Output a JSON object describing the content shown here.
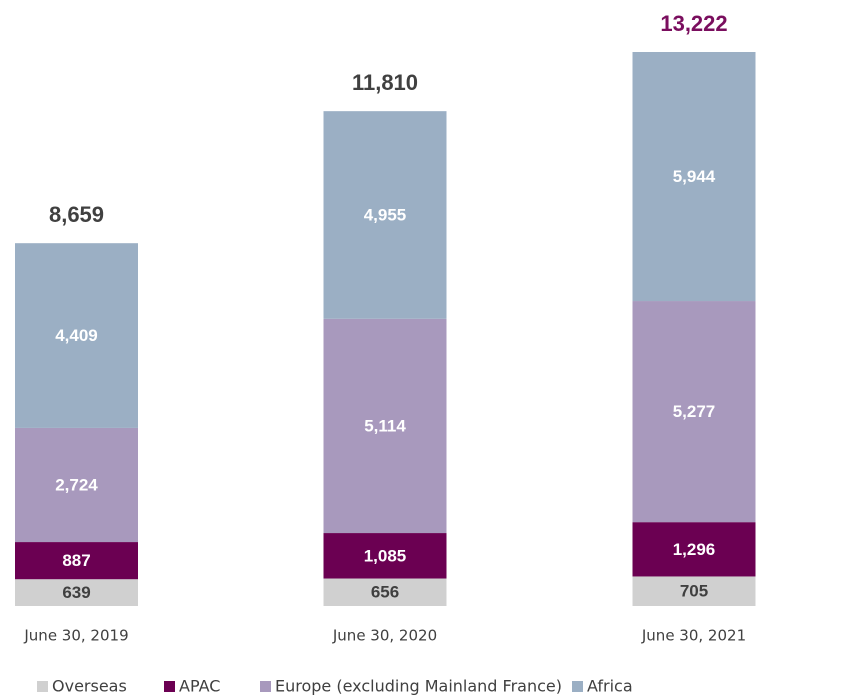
{
  "chart_data": {
    "type": "stacked_bar",
    "categories": [
      "June 30, 2019",
      "June 30, 2020",
      "June 30, 2021"
    ],
    "series": [
      {
        "name": "Overseas",
        "color": "#d0d0d0",
        "label_color": "#404040",
        "values": [
          639,
          656,
          705
        ],
        "value_labels": [
          "639",
          "656",
          "705"
        ]
      },
      {
        "name": "APAC",
        "color": "#6b0052",
        "label_color": "#ffffff",
        "values": [
          887,
          1085,
          1296
        ],
        "value_labels": [
          "887",
          "1,085",
          "1,296"
        ]
      },
      {
        "name": "Europe (excluding Mainland France)",
        "color": "#a899bd",
        "label_color": "#ffffff",
        "values": [
          2724,
          5114,
          5277
        ],
        "value_labels": [
          "2,724",
          "5,114",
          "5,277"
        ]
      },
      {
        "name": "Africa",
        "color": "#9bafc4",
        "label_color": "#ffffff",
        "values": [
          4409,
          4955,
          5944
        ],
        "value_labels": [
          "4,409",
          "4,955",
          "5,944"
        ]
      }
    ],
    "totals": [
      8659,
      11810,
      13222
    ],
    "total_labels": [
      "8,659",
      "11,810",
      "13,222"
    ],
    "total_colors": [
      "#404040",
      "#404040",
      "#7a0e5e"
    ],
    "legend": "bottom"
  }
}
